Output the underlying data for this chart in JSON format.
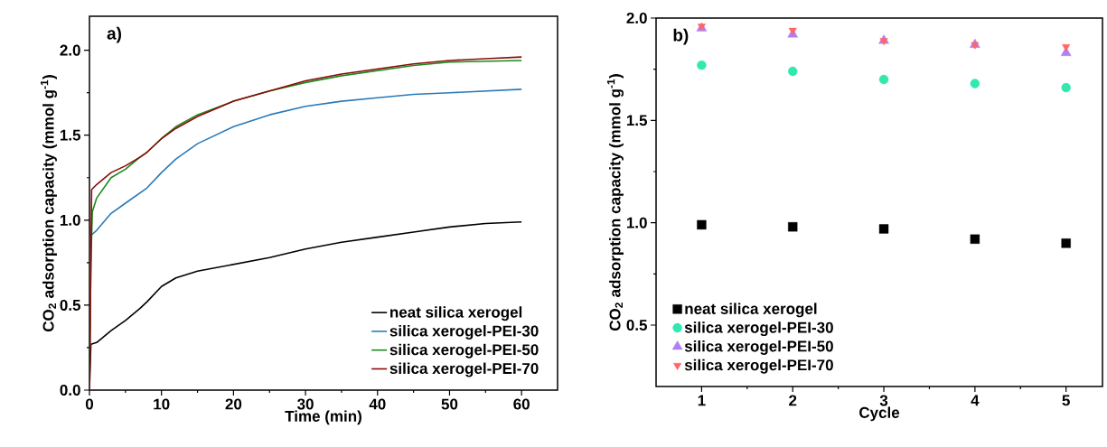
{
  "chart_data": [
    {
      "type": "line",
      "xlabel": "Time (min)",
      "ylabel": "CO$_{2}$ adsorption capacity (mmol g$^{-1}$)",
      "annotations": [
        "a)"
      ],
      "xlim": [
        0,
        65
      ],
      "ylim": [
        0,
        2.2
      ],
      "xticks": [
        0,
        10,
        20,
        30,
        40,
        50,
        60
      ],
      "yticks": [
        {
          "value": 0,
          "label": "0.0"
        },
        {
          "value": 0.5,
          "label": "0.5"
        },
        {
          "value": 1,
          "label": "1.0"
        },
        {
          "value": 1.5,
          "label": "1.5"
        },
        {
          "value": 2,
          "label": "2.0"
        }
      ],
      "legend": "bottom right",
      "grid": false,
      "marker": "none",
      "line_style": "solid",
      "series": [
        {
          "name": "neat silica xerogel",
          "color": "#000000",
          "x": [
            0,
            0.2,
            1,
            3,
            5,
            7,
            8,
            10,
            12,
            15,
            20,
            25,
            30,
            35,
            40,
            45,
            50,
            55,
            60
          ],
          "values": [
            0,
            0.27,
            0.28,
            0.35,
            0.41,
            0.48,
            0.52,
            0.61,
            0.66,
            0.7,
            0.74,
            0.78,
            0.83,
            0.87,
            0.9,
            0.93,
            0.96,
            0.98,
            0.99
          ]
        },
        {
          "name": "silica xerogel-PEI-30",
          "color": "#2a7ab9",
          "x": [
            0,
            0.2,
            1,
            3,
            5,
            7,
            8,
            10,
            12,
            15,
            20,
            25,
            30,
            35,
            40,
            45,
            50,
            55,
            60
          ],
          "values": [
            0,
            0.91,
            0.94,
            1.04,
            1.1,
            1.16,
            1.19,
            1.28,
            1.36,
            1.45,
            1.55,
            1.62,
            1.67,
            1.7,
            1.72,
            1.74,
            1.75,
            1.76,
            1.77
          ]
        },
        {
          "name": "silica xerogel-PEI-50",
          "color": "#1a8a1a",
          "x": [
            0,
            0.2,
            0.4,
            1,
            3,
            5,
            7,
            8,
            10,
            12,
            15,
            20,
            25,
            30,
            35,
            40,
            45,
            50,
            55,
            60
          ],
          "values": [
            0,
            0.75,
            1.05,
            1.13,
            1.25,
            1.3,
            1.37,
            1.4,
            1.48,
            1.55,
            1.62,
            1.7,
            1.76,
            1.81,
            1.85,
            1.88,
            1.91,
            1.93,
            1.935,
            1.94
          ]
        },
        {
          "name": "silica xerogel-PEI-70",
          "color": "#8b0a0a",
          "x": [
            0,
            0.3,
            1,
            3,
            5,
            7,
            8,
            10,
            12,
            15,
            20,
            25,
            30,
            35,
            40,
            45,
            50,
            55,
            60
          ],
          "values": [
            0,
            1.18,
            1.21,
            1.28,
            1.32,
            1.37,
            1.4,
            1.48,
            1.54,
            1.61,
            1.7,
            1.76,
            1.82,
            1.86,
            1.89,
            1.92,
            1.94,
            1.95,
            1.96
          ]
        }
      ]
    },
    {
      "type": "scatter",
      "xlabel": "Cycle",
      "ylabel": "CO$_{2}$ adsorption capacity (mmol g$^{-1}$)",
      "annotations": [
        "b)"
      ],
      "x": [
        1,
        2,
        3,
        4,
        5
      ],
      "xlim": [
        0.5,
        5.4
      ],
      "ylim": [
        0.2,
        2.0
      ],
      "xticks": [
        1,
        2,
        3,
        4,
        5
      ],
      "yticks": [
        {
          "value": 0.5,
          "label": "0.5"
        },
        {
          "value": 1,
          "label": "1.0"
        },
        {
          "value": 1.5,
          "label": "1.5"
        },
        {
          "value": 2,
          "label": "2.0"
        }
      ],
      "legend": "bottom left",
      "grid": false,
      "series": [
        {
          "name": "neat silica xerogel",
          "color": "#000000",
          "marker": "square",
          "values": [
            0.99,
            0.98,
            0.97,
            0.92,
            0.9
          ]
        },
        {
          "name": "silica xerogel-PEI-30",
          "color": "#33e8b0",
          "marker": "circle",
          "values": [
            1.77,
            1.74,
            1.7,
            1.68,
            1.66
          ]
        },
        {
          "name": "silica xerogel-PEI-50",
          "color": "#b07ff0",
          "marker": "triangle",
          "values": [
            1.95,
            1.92,
            1.89,
            1.87,
            1.83
          ]
        },
        {
          "name": "silica xerogel-PEI-70",
          "color": "#ff6666",
          "marker": "triangle down",
          "values": [
            1.96,
            1.94,
            1.89,
            1.87,
            1.86
          ]
        }
      ]
    }
  ]
}
